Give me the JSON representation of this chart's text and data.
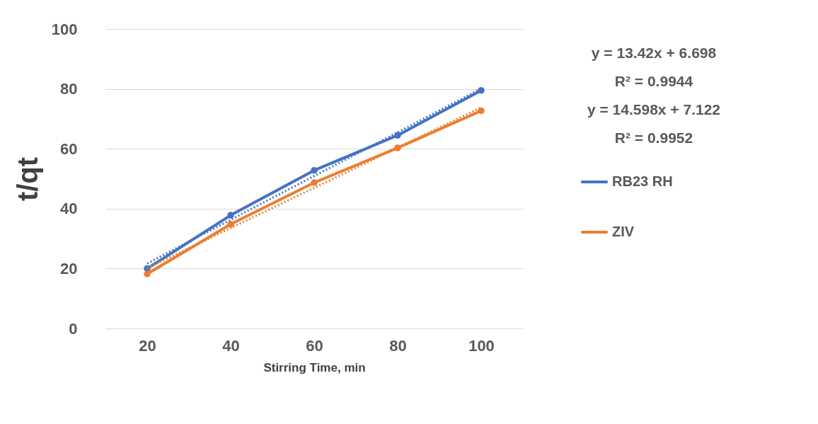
{
  "chart_data": {
    "type": "line",
    "xlabel": "Stirring Time, min",
    "ylabel": "t/qt",
    "categories": [
      "20",
      "40",
      "60",
      "80",
      "100"
    ],
    "series": [
      {
        "name": "RB23 RH",
        "color": "#4472c4",
        "values": [
          20,
          37.8,
          52.8,
          64.5,
          79.5
        ]
      },
      {
        "name": "ZIV",
        "color": "#ed7d31",
        "values": [
          18.2,
          34.8,
          48.7,
          60.3,
          72.7
        ]
      },
      {
        "type": "line",
        "x": [
          "20",
          "100"
        ],
        "color": "#4472c4",
        "values": [
          21.7,
          80.1
        ],
        "line_style": "dotted",
        "marker": "none"
      },
      {
        "type": "line",
        "x": [
          "20",
          "100"
        ],
        "color": "#ed7d31",
        "values": [
          20.1,
          73.8
        ],
        "line_style": "dotted",
        "marker": "none"
      }
    ],
    "annotations": [
      "y = 13.42x + 6.698",
      "R² = 0.9944",
      "y = 14.598x + 7.122",
      "R² = 0.9952"
    ],
    "ylim": [
      0,
      100
    ],
    "yticks": [
      0,
      20,
      40,
      60,
      80,
      100
    ],
    "grid": "y",
    "legend": "right",
    "marker": "circle",
    "line_style": "solid"
  }
}
